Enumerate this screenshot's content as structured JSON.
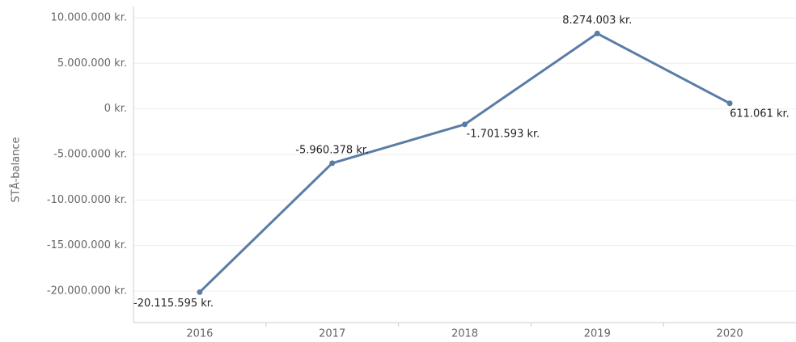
{
  "chart_data": {
    "type": "line",
    "y_label": "STÅ-balance",
    "categories": [
      "2016",
      "2017",
      "2018",
      "2019",
      "2020"
    ],
    "series": [
      {
        "name": "STÅ-balance",
        "color": "#5a7da6",
        "values": [
          -20115595,
          -5960378,
          -1701593,
          8274003,
          611061
        ],
        "value_labels": [
          "-20.115.595 kr.",
          "-5.960.378 kr.",
          "-1.701.593 kr.",
          "8.274.003 kr.",
          "611.061 kr."
        ]
      }
    ],
    "ylim": [
      -23460000,
      11240000
    ],
    "yticks": [
      {
        "value": 10000000,
        "label": "10.000.000 kr."
      },
      {
        "value": 5000000,
        "label": "5.000.000 kr."
      },
      {
        "value": 0,
        "label": "0 kr."
      },
      {
        "value": -5000000,
        "label": "-5.000.000 kr."
      },
      {
        "value": -10000000,
        "label": "-10.000.000 kr."
      },
      {
        "value": -15000000,
        "label": "-15.000.000 kr."
      },
      {
        "value": -20000000,
        "label": "-20.000.000 kr."
      }
    ],
    "grid": true
  }
}
